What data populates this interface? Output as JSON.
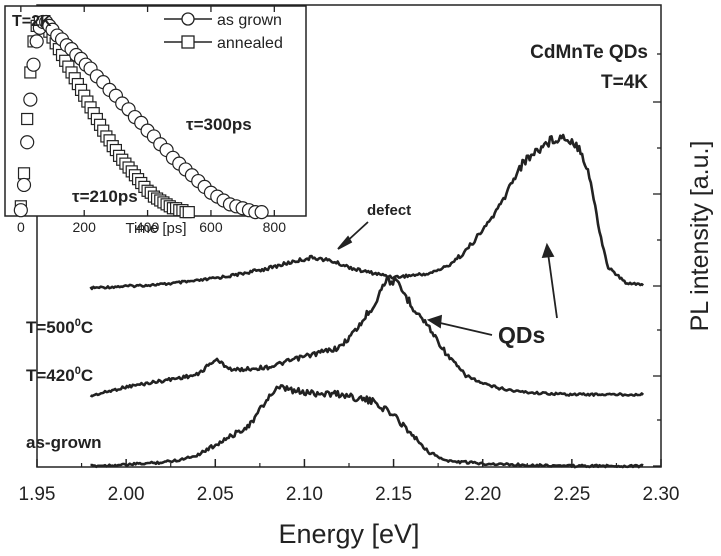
{
  "chart_data": {
    "type": "line",
    "title": "",
    "xlabel": "Energy [eV]",
    "ylabel": "PL intensity [a.u.]",
    "xlim": [
      1.95,
      2.3
    ],
    "x_ticks": [
      "1.95",
      "2.00",
      "2.05",
      "2.10",
      "2.15",
      "2.20",
      "2.25",
      "2.30"
    ],
    "y_ticks_labeled": false,
    "annotations": {
      "sample": "CdMnTe QDs",
      "temperature": "T=4K",
      "defect": "defect",
      "qds": "QDs"
    },
    "series": [
      {
        "name": "T=500°C",
        "label_main": "T=500",
        "label_sup": "0",
        "label_unit": "C",
        "x": [
          1.98,
          2.0,
          2.02,
          2.04,
          2.06,
          2.08,
          2.095,
          2.105,
          2.115,
          2.13,
          2.15,
          2.17,
          2.18,
          2.19,
          2.2,
          2.21,
          2.22,
          2.225,
          2.23,
          2.235,
          2.24,
          2.245,
          2.25,
          2.255,
          2.26,
          2.265,
          2.27,
          2.28,
          2.29
        ],
        "y": [
          0.0,
          0.01,
          0.02,
          0.04,
          0.07,
          0.11,
          0.15,
          0.17,
          0.15,
          0.1,
          0.06,
          0.08,
          0.12,
          0.2,
          0.32,
          0.46,
          0.66,
          0.72,
          0.76,
          0.8,
          0.83,
          0.84,
          0.82,
          0.77,
          0.62,
          0.34,
          0.12,
          0.03,
          0.02
        ]
      },
      {
        "name": "T=420°C",
        "label_main": "T=420",
        "label_sup": "0",
        "label_unit": "C",
        "x": [
          1.98,
          1.99,
          2.0,
          2.02,
          2.04,
          2.05,
          2.06,
          2.08,
          2.1,
          2.12,
          2.13,
          2.14,
          2.145,
          2.15,
          2.155,
          2.16,
          2.17,
          2.18,
          2.19,
          2.2,
          2.21,
          2.22,
          2.23,
          2.25,
          2.29
        ],
        "y": [
          0.0,
          0.03,
          0.06,
          0.1,
          0.14,
          0.24,
          0.17,
          0.19,
          0.26,
          0.32,
          0.45,
          0.62,
          0.76,
          0.76,
          0.69,
          0.6,
          0.45,
          0.27,
          0.14,
          0.08,
          0.05,
          0.03,
          0.02,
          0.01,
          0.01
        ]
      },
      {
        "name": "as-grown",
        "x": [
          1.98,
          2.0,
          2.02,
          2.03,
          2.04,
          2.05,
          2.06,
          2.07,
          2.08,
          2.085,
          2.09,
          2.095,
          2.1,
          2.11,
          2.12,
          2.13,
          2.14,
          2.15,
          2.16,
          2.17,
          2.18,
          2.2,
          2.22,
          2.25,
          2.29
        ],
        "y": [
          0.0,
          0.01,
          0.03,
          0.05,
          0.09,
          0.17,
          0.25,
          0.34,
          0.56,
          0.62,
          0.62,
          0.6,
          0.59,
          0.59,
          0.58,
          0.55,
          0.51,
          0.41,
          0.26,
          0.11,
          0.04,
          0.02,
          0.01,
          0.0,
          0.0
        ]
      }
    ],
    "inset": {
      "type": "scatter",
      "xlabel": "Time [ps]",
      "xlim": [
        -50,
        900
      ],
      "x_ticks": [
        "0",
        "200",
        "400",
        "600",
        "800"
      ],
      "annotations": {
        "temperature": "T=2K",
        "tau_grown": "τ=300ps",
        "tau_annealed": "τ=210ps"
      },
      "series": [
        {
          "name": "as grown",
          "marker": "circle",
          "x": [
            0,
            10,
            20,
            30,
            40,
            50,
            60,
            70,
            80,
            90,
            100,
            115,
            130,
            145,
            160,
            175,
            190,
            205,
            220,
            240,
            260,
            280,
            300,
            320,
            340,
            360,
            380,
            400,
            420,
            440,
            460,
            480,
            500,
            520,
            540,
            560,
            580,
            600,
            620,
            640,
            660,
            680,
            700,
            720,
            740,
            760
          ],
          "y": [
            0.03,
            0.16,
            0.38,
            0.6,
            0.78,
            0.9,
            0.97,
            1.0,
            1.0,
            0.98,
            0.96,
            0.93,
            0.91,
            0.88,
            0.86,
            0.83,
            0.81,
            0.78,
            0.76,
            0.72,
            0.69,
            0.65,
            0.62,
            0.58,
            0.55,
            0.51,
            0.48,
            0.44,
            0.41,
            0.37,
            0.34,
            0.3,
            0.27,
            0.24,
            0.21,
            0.18,
            0.15,
            0.12,
            0.1,
            0.08,
            0.06,
            0.05,
            0.04,
            0.03,
            0.02,
            0.02
          ]
        },
        {
          "name": "annealed",
          "marker": "square",
          "x": [
            0,
            10,
            20,
            30,
            40,
            50,
            60,
            70,
            80,
            90,
            100,
            110,
            120,
            130,
            140,
            150,
            160,
            170,
            180,
            190,
            200,
            210,
            220,
            230,
            240,
            250,
            260,
            270,
            280,
            290,
            300,
            310,
            320,
            330,
            340,
            350,
            360,
            370,
            380,
            390,
            400,
            410,
            420,
            430,
            440,
            450,
            460,
            470,
            480,
            490,
            500,
            510,
            520,
            530
          ],
          "y": [
            0.05,
            0.22,
            0.5,
            0.74,
            0.9,
            0.98,
            1.0,
            0.99,
            0.97,
            0.95,
            0.92,
            0.89,
            0.86,
            0.83,
            0.8,
            0.77,
            0.74,
            0.71,
            0.68,
            0.65,
            0.62,
            0.59,
            0.56,
            0.53,
            0.5,
            0.47,
            0.44,
            0.41,
            0.39,
            0.36,
            0.34,
            0.31,
            0.29,
            0.27,
            0.25,
            0.23,
            0.21,
            0.19,
            0.17,
            0.15,
            0.13,
            0.12,
            0.1,
            0.09,
            0.08,
            0.07,
            0.06,
            0.05,
            0.04,
            0.04,
            0.03,
            0.03,
            0.02,
            0.02
          ]
        }
      ]
    }
  }
}
